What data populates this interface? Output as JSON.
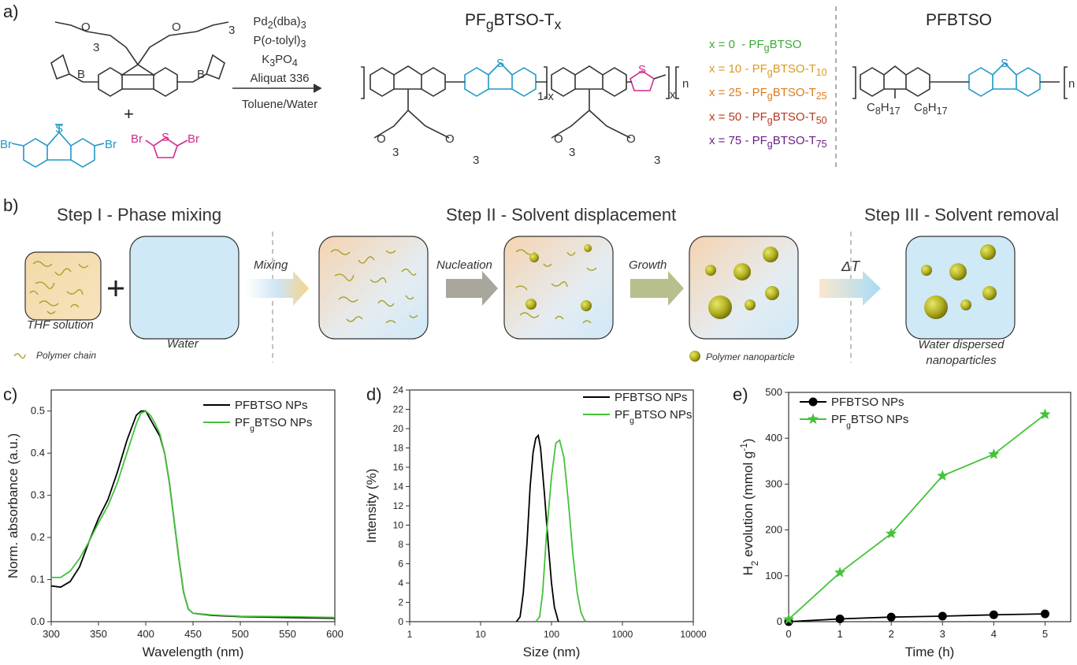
{
  "panel_a": {
    "label": "a)",
    "conditions": [
      "Pd<sub>2</sub>(dba)<sub>3</sub>",
      "P(<i>o</i>-tolyl)<sub>3</sub>",
      "K<sub>3</sub>PO<sub>4</sub>",
      "Aliquat 336"
    ],
    "solvent": "Toluene/Water",
    "product_title": "PF<sub>g</sub>BTSO-T<sub>x</sub>",
    "ref_title": "PFBTSO",
    "plus": "+",
    "variants": [
      {
        "text": "x = 0 &nbsp;- PF<sub>g</sub>BTSO",
        "color": "#3aaa35"
      },
      {
        "text": "x = 10 - PF<sub>g</sub>BTSO-T<sub>10</sub>",
        "color": "#d99a20"
      },
      {
        "text": "x = 25 - PF<sub>g</sub>BTSO-T<sub>25</sub>",
        "color": "#e07a1a"
      },
      {
        "text": "x = 50 - PF<sub>g</sub>BTSO-T<sub>50</sub>",
        "color": "#b8371f"
      },
      {
        "text": "x = 75 - PF<sub>g</sub>BTSO-T<sub>75</sub>",
        "color": "#6a1f86"
      }
    ],
    "labels": {
      "br": "Br",
      "b": "B",
      "o": "O",
      "s": "S",
      "three": "3",
      "n": "n",
      "x": "x",
      "one_minus_x": "1-x",
      "c8h17_left": "C<sub>8</sub>H<sub>17</sub>",
      "c8h17_right": "C<sub>8</sub>H<sub>17</sub>"
    }
  },
  "panel_b": {
    "label": "b)",
    "steps": [
      "Step I - Phase mixing",
      "Step II - Solvent displacement",
      "Step III - Solvent removal"
    ],
    "arrows": [
      "Mixing",
      "Nucleation",
      "Growth",
      "ΔT"
    ],
    "captions": {
      "thf": "THF solution",
      "water": "Water",
      "chain": "Polymer chain",
      "nanoparticle": "Polymer nanoparticle",
      "dispersed_1": "Water dispersed",
      "dispersed_2": "nanoparticles"
    },
    "plus": "+"
  },
  "panel_c": {
    "label": "c)"
  },
  "panel_d": {
    "label": "d)"
  },
  "panel_e": {
    "label": "e)"
  },
  "colors": {
    "black_series": "#000000",
    "green_series": "#45c23a",
    "step_blue": "#cfe9f7",
    "particle": "#a9a81a"
  },
  "chart_data": [
    {
      "type": "line",
      "xlabel": "Wavelength (nm)",
      "ylabel": "Norm. absorbance (a.u.)",
      "xlim": [
        300,
        600
      ],
      "ylim": [
        0,
        0.55
      ],
      "xticks": [
        "300",
        "350",
        "400",
        "450",
        "500",
        "550",
        "600"
      ],
      "yticks": [
        "0.0",
        "0.1",
        "0.2",
        "0.3",
        "0.4",
        "0.5"
      ],
      "legend_position": "top-right",
      "series": [
        {
          "name": "PFBTSO NPs",
          "color": "#000000",
          "points": [
            [
              300,
              0.085
            ],
            [
              310,
              0.082
            ],
            [
              320,
              0.095
            ],
            [
              330,
              0.13
            ],
            [
              340,
              0.19
            ],
            [
              350,
              0.245
            ],
            [
              360,
              0.29
            ],
            [
              370,
              0.355
            ],
            [
              380,
              0.43
            ],
            [
              390,
              0.49
            ],
            [
              395,
              0.5
            ],
            [
              400,
              0.5
            ],
            [
              405,
              0.48
            ],
            [
              410,
              0.46
            ],
            [
              415,
              0.44
            ],
            [
              420,
              0.4
            ],
            [
              425,
              0.33
            ],
            [
              430,
              0.24
            ],
            [
              435,
              0.15
            ],
            [
              440,
              0.07
            ],
            [
              445,
              0.03
            ],
            [
              450,
              0.02
            ],
            [
              470,
              0.015
            ],
            [
              500,
              0.012
            ],
            [
              550,
              0.01
            ],
            [
              600,
              0.008
            ]
          ]
        },
        {
          "name": "PF<sub>g</sub>BTSO NPs",
          "color": "#45c23a",
          "points": [
            [
              300,
              0.105
            ],
            [
              310,
              0.105
            ],
            [
              320,
              0.12
            ],
            [
              330,
              0.15
            ],
            [
              340,
              0.19
            ],
            [
              350,
              0.235
            ],
            [
              360,
              0.275
            ],
            [
              370,
              0.33
            ],
            [
              380,
              0.4
            ],
            [
              390,
              0.47
            ],
            [
              395,
              0.495
            ],
            [
              400,
              0.5
            ],
            [
              405,
              0.49
            ],
            [
              410,
              0.47
            ],
            [
              415,
              0.445
            ],
            [
              420,
              0.4
            ],
            [
              425,
              0.33
            ],
            [
              430,
              0.24
            ],
            [
              435,
              0.15
            ],
            [
              440,
              0.07
            ],
            [
              445,
              0.03
            ],
            [
              450,
              0.02
            ],
            [
              470,
              0.016
            ],
            [
              500,
              0.013
            ],
            [
              550,
              0.012
            ],
            [
              600,
              0.01
            ]
          ]
        }
      ]
    },
    {
      "type": "line",
      "xlabel": "Size (nm)",
      "ylabel": "Intensity (%)",
      "xscale": "log",
      "xlim": [
        1,
        10000
      ],
      "ylim": [
        0,
        24
      ],
      "xticks": [
        "1",
        "10",
        "100",
        "1000",
        "10000"
      ],
      "yticks": [
        "0",
        "2",
        "4",
        "6",
        "8",
        "10",
        "12",
        "14",
        "16",
        "18",
        "20",
        "22",
        "24"
      ],
      "legend_position": "top-right",
      "series": [
        {
          "name": "PFBTSO NPs",
          "color": "#000000",
          "points": [
            [
              32,
              0
            ],
            [
              36,
              0.5
            ],
            [
              40,
              3
            ],
            [
              45,
              8
            ],
            [
              50,
              14
            ],
            [
              55,
              17.5
            ],
            [
              60,
              19
            ],
            [
              65,
              19.3
            ],
            [
              70,
              18
            ],
            [
              80,
              13
            ],
            [
              90,
              8
            ],
            [
              100,
              4
            ],
            [
              110,
              1.5
            ],
            [
              120,
              0.5
            ],
            [
              125,
              0
            ]
          ]
        },
        {
          "name": "PF<sub>g</sub>BTSO NPs",
          "color": "#45c23a",
          "points": [
            [
              60,
              0
            ],
            [
              68,
              0.5
            ],
            [
              75,
              3
            ],
            [
              85,
              9
            ],
            [
              100,
              15
            ],
            [
              115,
              18.5
            ],
            [
              130,
              18.8
            ],
            [
              150,
              17
            ],
            [
              175,
              12
            ],
            [
              200,
              7
            ],
            [
              230,
              3
            ],
            [
              260,
              1
            ],
            [
              290,
              0.2
            ],
            [
              310,
              0
            ]
          ]
        }
      ]
    },
    {
      "type": "line",
      "xlabel": "Time (h)",
      "ylabel": "H<sub>2</sub> evolution (mmol g<sup>-1</sup>)",
      "xlim": [
        0,
        5.5
      ],
      "ylim": [
        0,
        500
      ],
      "xticks": [
        "0",
        "1",
        "2",
        "3",
        "4",
        "5"
      ],
      "yticks": [
        "0",
        "100",
        "200",
        "300",
        "400",
        "500"
      ],
      "legend_position": "top-left",
      "series": [
        {
          "name": "PFBTSO NPs",
          "color": "#000000",
          "marker": "circle",
          "points": [
            [
              0,
              0
            ],
            [
              1,
              6
            ],
            [
              2,
              10
            ],
            [
              3,
              12
            ],
            [
              4,
              15
            ],
            [
              5,
              17
            ]
          ]
        },
        {
          "name": "PF<sub>g</sub>BTSO NPs",
          "color": "#45c23a",
          "marker": "star",
          "points": [
            [
              0,
              5
            ],
            [
              1,
              107
            ],
            [
              2,
              192
            ],
            [
              3,
              318
            ],
            [
              4,
              365
            ],
            [
              5,
              452
            ]
          ]
        }
      ]
    }
  ]
}
